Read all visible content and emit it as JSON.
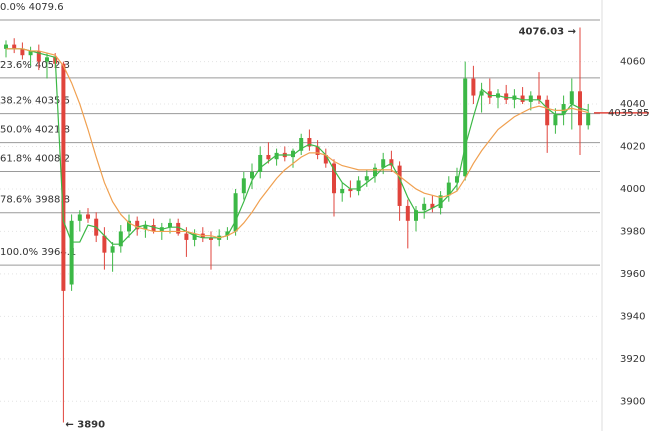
{
  "chart_data": {
    "type": "candlestick",
    "open": [
      4066,
      4068,
      4066,
      4063,
      4065,
      4060,
      4062,
      4059,
      3955,
      3985,
      3988,
      3986,
      3978,
      3970,
      3973,
      3980,
      3985,
      3981,
      3983,
      3980,
      3982,
      3984,
      3979,
      3976,
      3979,
      3977,
      3976,
      3978,
      3980,
      3998,
      4005,
      4008,
      4016,
      4014,
      4017,
      4015,
      4018,
      4024,
      4020,
      4016,
      4012,
      3998,
      4000,
      3999,
      4004,
      4006,
      4010,
      4014,
      4011,
      3992,
      3985,
      3990,
      3993,
      3991,
      3997,
      4003,
      4006,
      4052,
      4044,
      4046,
      4043,
      4045,
      4042,
      4044,
      4041,
      4044,
      4042,
      4030,
      4035,
      4040,
      4046,
      4030
    ],
    "high": [
      4070,
      4071,
      4069,
      4067,
      4068,
      4064,
      4064,
      4060,
      3988,
      3990,
      3991,
      3989,
      3982,
      3975,
      3983,
      3988,
      3987,
      3985,
      3986,
      3984,
      3986,
      3986,
      3982,
      3981,
      3982,
      3980,
      3981,
      3982,
      4000,
      4008,
      4012,
      4020,
      4022,
      4019,
      4020,
      4019,
      4026,
      4028,
      4023,
      4019,
      4014,
      4003,
      4004,
      4006,
      4009,
      4012,
      4017,
      4018,
      4013,
      3995,
      3992,
      3996,
      3997,
      3999,
      4006,
      4010,
      4060,
      4058,
      4050,
      4052,
      4047,
      4049,
      4047,
      4048,
      4046,
      4055,
      4044,
      4038,
      4044,
      4052,
      4076.03,
      4040
    ],
    "low": [
      4062,
      4064,
      4061,
      4058,
      4056,
      4052,
      4057,
      3890,
      3952,
      3980,
      3984,
      3975,
      3962,
      3961,
      3970,
      3977,
      3978,
      3977,
      3979,
      3976,
      3979,
      3978,
      3968,
      3973,
      3975,
      3962,
      3973,
      3976,
      3978,
      3995,
      4000,
      4005,
      4012,
      4011,
      4013,
      4010,
      4016,
      4018,
      4014,
      4010,
      3987,
      3994,
      3996,
      3997,
      4001,
      4003,
      4007,
      4008,
      3985,
      3972,
      3980,
      3986,
      3989,
      3988,
      3994,
      3999,
      4004,
      4040,
      4036,
      4040,
      4038,
      4040,
      4038,
      4040,
      4037,
      4040,
      4017,
      4026,
      4030,
      4028,
      4016,
      4028
    ],
    "close": [
      4068,
      4066,
      4063,
      4065,
      4060,
      4062,
      4059,
      3952,
      3985,
      3988,
      3986,
      3978,
      3970,
      3973,
      3980,
      3985,
      3981,
      3983,
      3980,
      3982,
      3984,
      3979,
      3976,
      3979,
      3977,
      3976,
      3978,
      3980,
      3998,
      4005,
      4008,
      4016,
      4014,
      4017,
      4015,
      4018,
      4024,
      4020,
      4016,
      4012,
      3998,
      4000,
      3999,
      4004,
      4006,
      4010,
      4014,
      4011,
      3992,
      3985,
      3990,
      3993,
      3991,
      3997,
      4003,
      4006,
      4052,
      4044,
      4046,
      4043,
      4045,
      4042,
      4044,
      4041,
      4044,
      4042,
      4030,
      4035,
      4040,
      4046,
      4030,
      4035.85
    ],
    "moving_averages": [
      {
        "color": "#3cb846",
        "values": [
          4066,
          4066,
          4066,
          4065,
          4064,
          4063,
          4062,
          3985,
          3975,
          3975,
          3983,
          3982,
          3978,
          3974,
          3974,
          3978,
          3982,
          3983,
          3982,
          3981,
          3982,
          3982,
          3980,
          3978,
          3977,
          3977,
          3977,
          3978,
          3985,
          3994,
          4004,
          4010,
          4013,
          4016,
          4016,
          4016,
          4019,
          4021,
          4020,
          4016,
          4009,
          4003,
          4000,
          4000,
          4003,
          4006,
          4010,
          4012,
          4005,
          3996,
          3989,
          3989,
          3991,
          3993,
          3997,
          4002,
          4020,
          4034,
          4047,
          4044,
          4044,
          4043,
          4043,
          4042,
          4042,
          4042,
          4038,
          4035,
          4035,
          4040,
          4038,
          4037
        ]
      },
      {
        "color": "#f0a050",
        "values": [
          4066,
          4066,
          4066,
          4065,
          4065,
          4064,
          4063,
          4058,
          4050,
          4040,
          4028,
          4015,
          4003,
          3994,
          3988,
          3984,
          3982,
          3981,
          3980,
          3980,
          3980,
          3980,
          3980,
          3979,
          3978,
          3978,
          3977,
          3978,
          3980,
          3984,
          3989,
          3995,
          4000,
          4005,
          4009,
          4012,
          4015,
          4017,
          4017,
          4016,
          4013,
          4011,
          4010,
          4009,
          4009,
          4009,
          4009,
          4009,
          4006,
          4003,
          4000,
          3998,
          3997,
          3996,
          3997,
          3999,
          4005,
          4012,
          4018,
          4023,
          4028,
          4031,
          4034,
          4036,
          4038,
          4039,
          4038,
          4037,
          4037,
          4038,
          4037,
          4036
        ]
      }
    ],
    "colors": {
      "up": "#3cb846",
      "down": "#e0443c"
    },
    "fib_levels": [
      {
        "value": 4079.6,
        "label": "0.0% 4079.6"
      },
      {
        "value": 4052.3,
        "label": "23.6% 4052.3"
      },
      {
        "value": 4035.5,
        "label": "38.2% 4035.5"
      },
      {
        "value": 4021.8,
        "label": "50.0% 4021.8"
      },
      {
        "value": 4008.2,
        "label": "61.8% 4008.2"
      },
      {
        "value": 3988.8,
        "label": "78.6% 3988.8"
      },
      {
        "value": 3964.1,
        "label": "100.0% 3964.1"
      }
    ],
    "high_label": "4076.03 →",
    "low_label": "← 3890",
    "last_label": "4035.85",
    "ylim": [
      3886,
      4089
    ],
    "yticks": [
      3900,
      3920,
      3940,
      3960,
      3980,
      4000,
      4020,
      4040,
      4060
    ],
    "grid": true
  }
}
